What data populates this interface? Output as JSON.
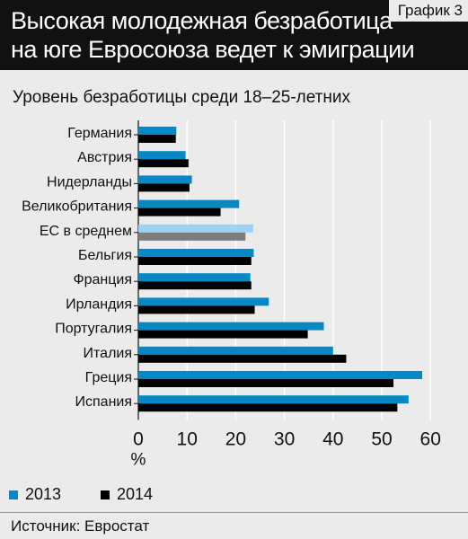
{
  "header": {
    "title_line1": "Высокая молодежная безработица",
    "title_line2": "на юге Евросоюза ведет к эмиграции",
    "graph_label": "График 3"
  },
  "chart_data": {
    "type": "bar",
    "orientation": "horizontal",
    "title": "Уровень безработицы среди 18–25-летних",
    "xlabel": "%",
    "xlim": [
      0,
      60
    ],
    "xticks": [
      0,
      10,
      20,
      30,
      40,
      50,
      60
    ],
    "grid": true,
    "legend_position": "bottom-left",
    "categories": [
      "Германия",
      "Австрия",
      "Нидерланды",
      "Великобритания",
      "ЕС в среднем",
      "Бельгия",
      "Франция",
      "Ирландия",
      "Португалия",
      "Италия",
      "Греция",
      "Испания"
    ],
    "series": [
      {
        "name": "2013",
        "color": "#0a87c2",
        "values": [
          7.8,
          9.7,
          11.0,
          20.7,
          23.6,
          23.7,
          23.0,
          26.8,
          38.1,
          40.0,
          58.3,
          55.5
        ]
      },
      {
        "name": "2014",
        "color": "#000000",
        "values": [
          7.7,
          10.3,
          10.5,
          16.9,
          22.0,
          23.2,
          23.2,
          23.9,
          34.8,
          42.7,
          52.4,
          53.2
        ]
      }
    ],
    "highlight": {
      "category": "ЕС в среднем",
      "colors": [
        "#9fd3f1",
        "#7c7c7c"
      ]
    }
  },
  "legend": {
    "items": [
      {
        "label": "2013",
        "color": "#0a87c2"
      },
      {
        "label": "2014",
        "color": "#000000"
      }
    ]
  },
  "footer": {
    "source": "Источник: Евростат"
  }
}
